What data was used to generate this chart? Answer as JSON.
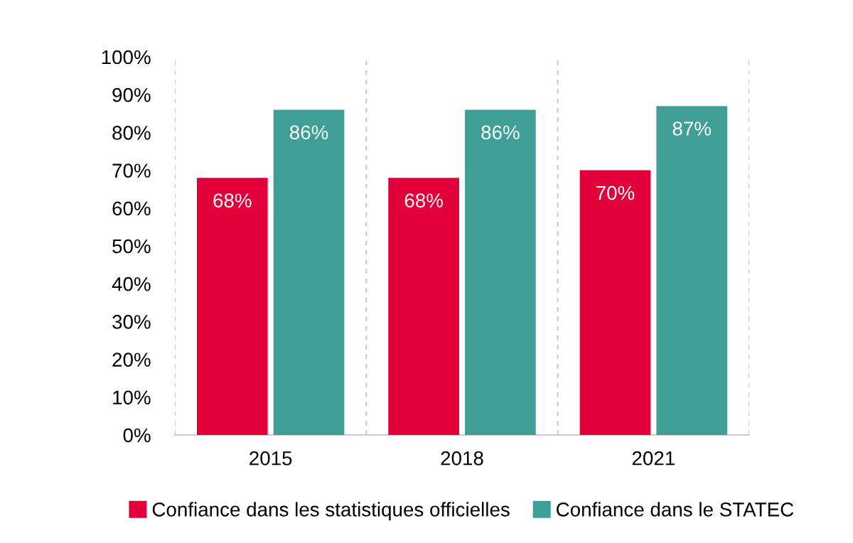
{
  "chart_data": {
    "type": "bar",
    "categories": [
      "2015",
      "2018",
      "2021"
    ],
    "series": [
      {
        "name": "Confiance dans les statistiques officielles",
        "color": "#e2003b",
        "values": [
          68,
          68,
          70
        ],
        "value_labels": [
          "68%",
          "68%",
          "70%"
        ]
      },
      {
        "name": "Confiance dans le STATEC",
        "color": "#3f9f97",
        "values": [
          86,
          86,
          87
        ],
        "value_labels": [
          "86%",
          "86%",
          "87%"
        ]
      }
    ],
    "ylim": [
      0,
      100
    ],
    "yticks": [
      {
        "value": 0,
        "label": "0%"
      },
      {
        "value": 10,
        "label": "10%"
      },
      {
        "value": 20,
        "label": "20%"
      },
      {
        "value": 30,
        "label": "30%"
      },
      {
        "value": 40,
        "label": "40%"
      },
      {
        "value": 50,
        "label": "50%"
      },
      {
        "value": 60,
        "label": "60%"
      },
      {
        "value": 70,
        "label": "70%"
      },
      {
        "value": 80,
        "label": "80%"
      },
      {
        "value": 90,
        "label": "90%"
      },
      {
        "value": 100,
        "label": "100%"
      }
    ],
    "grid": "x",
    "legend": "bottom"
  }
}
